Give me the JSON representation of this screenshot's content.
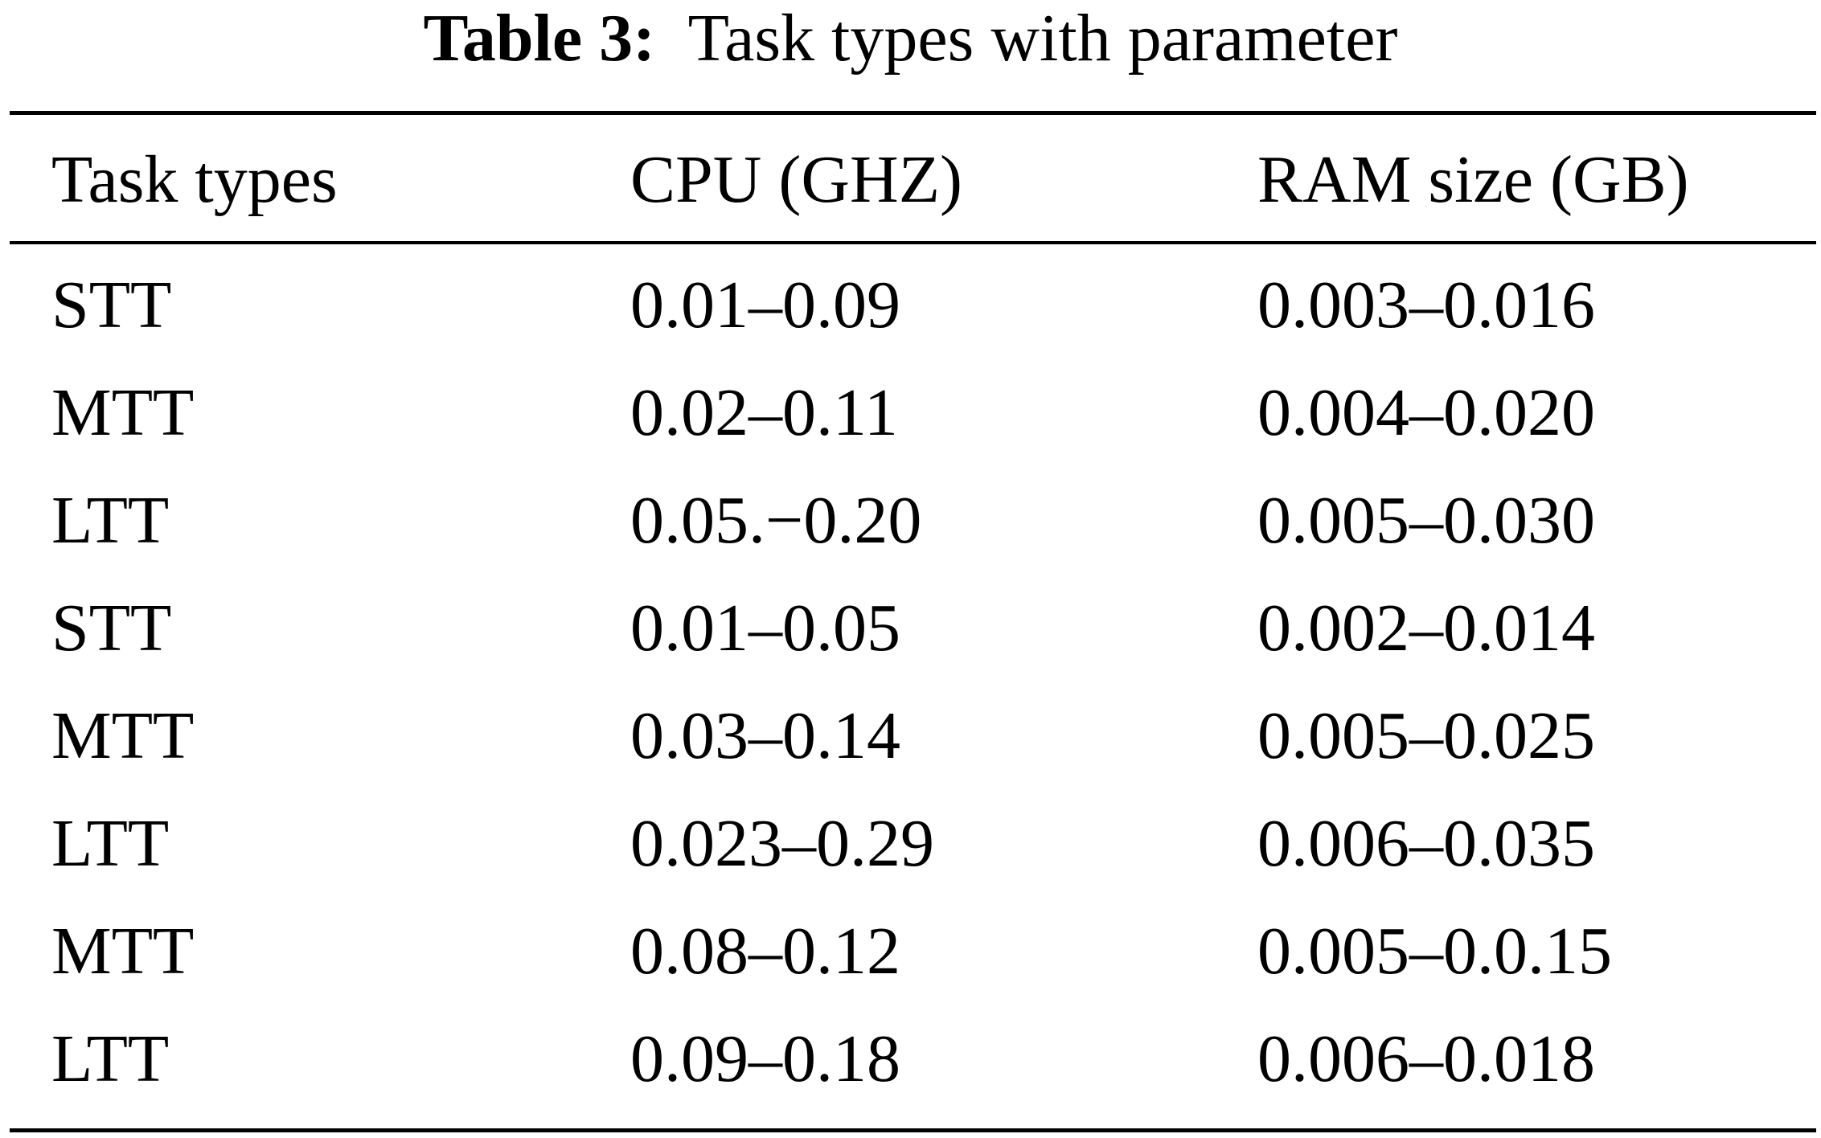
{
  "caption": {
    "label": "Table 3:",
    "text": "Task types with parameter"
  },
  "table": {
    "headers": [
      "Task types",
      "CPU (GHZ)",
      "RAM size (GB)"
    ],
    "rows": [
      [
        "STT",
        "0.01–0.09",
        "0.003–0.016"
      ],
      [
        "MTT",
        "0.02–0.11",
        "0.004–0.020"
      ],
      [
        "LTT",
        "0.05.−0.20",
        "0.005–0.030"
      ],
      [
        "STT",
        "0.01–0.05",
        "0.002–0.014"
      ],
      [
        "MTT",
        "0.03–0.14",
        "0.005–0.025"
      ],
      [
        "LTT",
        "0.023–0.29",
        "0.006–0.035"
      ],
      [
        "MTT",
        "0.08–0.12",
        "0.005–0.0.15"
      ],
      [
        "LTT",
        "0.09–0.18",
        "0.006–0.018"
      ]
    ]
  }
}
